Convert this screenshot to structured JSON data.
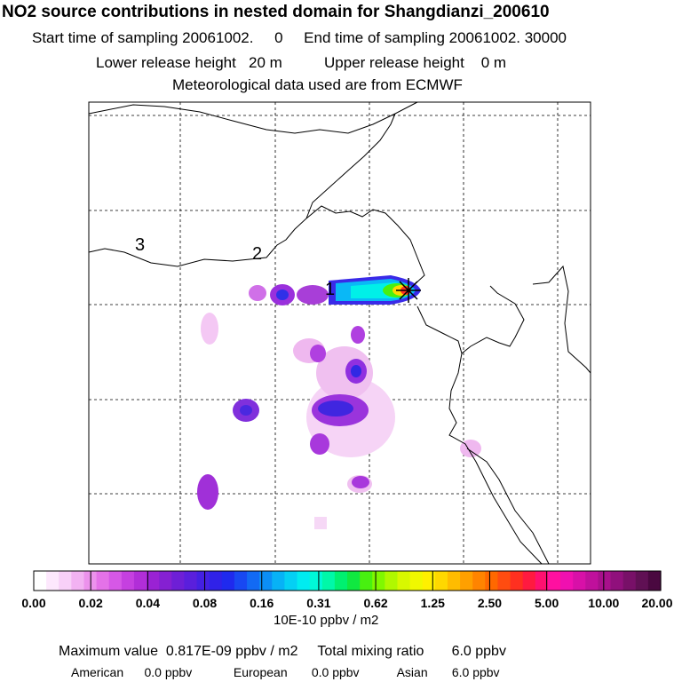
{
  "header": {
    "title": "NO2 source contributions in nested domain for Shangdianzi_200610",
    "sampling": "Start time of sampling 20061002.     0     End time of sampling 20061002. 30000",
    "release": "Lower release height   20 m          Upper release height    0 m",
    "met": "Meteorological data used are from ECMWF"
  },
  "chart_data": {
    "type": "heatmap",
    "title": "NO2 source contributions in nested domain for Shangdianzi_200610",
    "region_labels": [
      "3",
      "2",
      "1"
    ],
    "colorbar": {
      "unit": "10E-10 ppbv / m2",
      "tick_labels": [
        "0.00",
        "0.02",
        "0.04",
        "0.08",
        "0.16",
        "0.31",
        "0.62",
        "1.25",
        "2.50",
        "5.00",
        "10.00",
        "20.00"
      ],
      "colors": [
        "#ffffff",
        "#fde8fd",
        "#f8d0f8",
        "#f2b2f2",
        "#ec92ec",
        "#e472e8",
        "#d658e6",
        "#c540e0",
        "#b12ed8",
        "#9a22d4",
        "#8520d2",
        "#6e1fd6",
        "#5a1fdc",
        "#4420e2",
        "#3022e8",
        "#1f2aee",
        "#1848f2",
        "#126af4",
        "#0c8ef6",
        "#07b2f6",
        "#04d0f4",
        "#00ecf0",
        "#00f8d8",
        "#00f8a8",
        "#00f070",
        "#10e840",
        "#48f010",
        "#80f800",
        "#b0f800",
        "#d8f800",
        "#f0f800",
        "#fff000",
        "#ffd800",
        "#ffbc00",
        "#ffa000",
        "#ff8400",
        "#ff6800",
        "#ff4c10",
        "#ff3020",
        "#ff1a40",
        "#ff1070",
        "#ff10a0",
        "#f010b0",
        "#d810a8",
        "#c0109c",
        "#a8108c",
        "#90107c",
        "#781068",
        "#601054",
        "#4a0840"
      ]
    },
    "stats": {
      "max_line": "Maximum value  0.817E-09 ppbv / m2",
      "total_line": "Total mixing ratio       6.0 ppbv",
      "american_label": "American",
      "american_value": "0.0 ppbv",
      "european_label": "European",
      "european_value": "0.0 ppbv",
      "asian_label": "Asian",
      "asian_value": "6.0 ppbv"
    }
  }
}
